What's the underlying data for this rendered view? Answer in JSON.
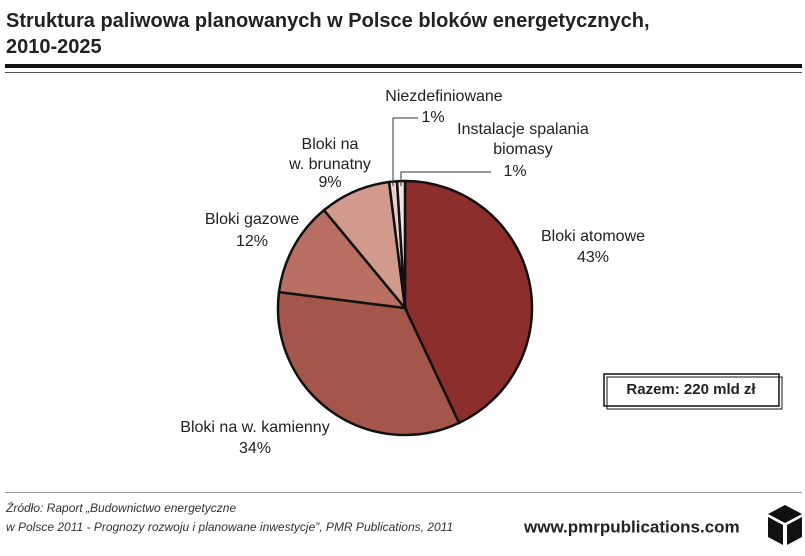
{
  "chart_data": {
    "type": "pie",
    "title": "Struktura paliwowa planowanych w Polsce bloków energetycznych,\n2010-2025",
    "categories": [
      "Bloki atomowe",
      "Bloki na w. kamienny",
      "Bloki gazowe",
      "Bloki na\nw. brunatny",
      "Niezdefiniowane",
      "Instalacje spalania\nbiomasy"
    ],
    "values": [
      43,
      34,
      12,
      9,
      1,
      1
    ],
    "value_labels": [
      "43%",
      "34%",
      "12%",
      "9%",
      "1%",
      "1%"
    ],
    "colors": [
      "#8c2f2c",
      "#a5564a",
      "#b97063",
      "#d29a8d",
      "#ead0c8",
      "#f4e4df"
    ],
    "total_label": "Razem: 220 mld zł",
    "source": "Źródło: Raport „Budownictwo energetyczne\nw Polsce 2011 - Prognozy rozwoju i planowane inwestycje”, PMR Publications, 2011",
    "website": "www.pmrpublications.com"
  }
}
